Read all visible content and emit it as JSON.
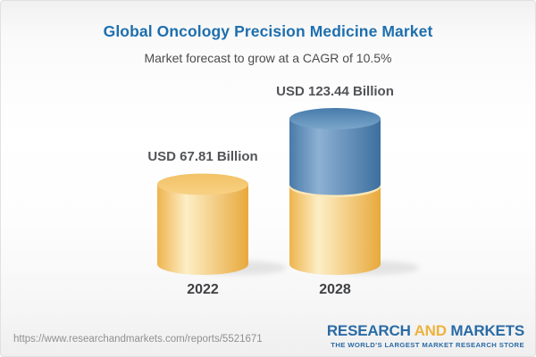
{
  "header": {
    "title": "Global Oncology Precision Medicine Market",
    "subtitle": "Market forecast to grow at a CAGR of 10.5%"
  },
  "chart_data": {
    "type": "bar",
    "variant": "3d-cylinder",
    "title": "Global Oncology Precision Medicine Market",
    "subtitle": "Market forecast to grow at a CAGR of 10.5%",
    "unit": "USD Billion",
    "cagr_percent": 10.5,
    "categories": [
      "2022",
      "2028"
    ],
    "values": [
      67.81,
      123.44
    ],
    "grid": false,
    "legend": null,
    "bars": [
      {
        "category": "2022",
        "value": 67.81,
        "label": "USD 67.81 Billion",
        "segments": [
          {
            "palette": "gold",
            "value": 67.81
          }
        ]
      },
      {
        "category": "2028",
        "value": 123.44,
        "label": "USD 123.44 Billion",
        "segments": [
          {
            "palette": "gold",
            "value": 67.81
          },
          {
            "palette": "blue",
            "value": 55.63
          }
        ]
      }
    ],
    "palettes": {
      "gold": {
        "edge": "#eeb44e",
        "highlight": "#fdeec6",
        "edge2": "#e8a93c",
        "top": "#f2c265",
        "topLight": "#f8d避84",
        "rim": "#fbe7b8"
      },
      "blue": {
        "edge": "#4a7aa9",
        "highlight": "#8db1d3",
        "edge2": "#3d6f9f",
        "top": "#477bab",
        "topLight": "#7ba6ca",
        "rim": "#a9c4dc"
      }
    },
    "shadow_color": "#d2d2d2"
  },
  "footer": {
    "url": "https://www.researchandmarkets.com/reports/5521671",
    "logo": {
      "research": "RESEARCH",
      "and": "AND",
      "markets": "MARKETS",
      "tagline": "THE WORLD'S LARGEST MARKET RESEARCH STORE",
      "blue": "#2a6ba5",
      "gold": "#eeb33d"
    }
  },
  "colors": {
    "title": "#1e6fae",
    "subtitle": "#4c4c4c",
    "value_label": "#535458",
    "year_label": "#3f4043",
    "url_text": "#8f9092"
  }
}
